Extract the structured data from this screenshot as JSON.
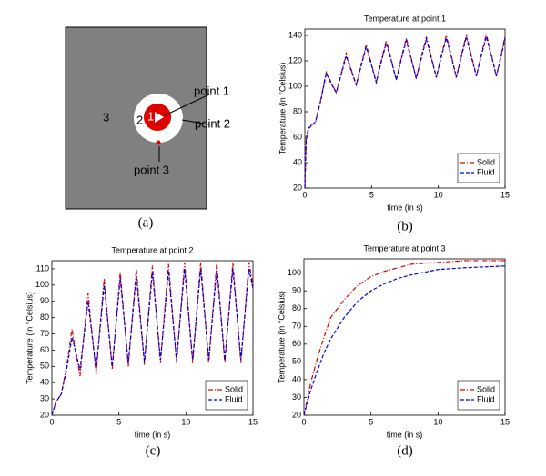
{
  "figure": {
    "panels": [
      "(a)",
      "(b)",
      "(c)",
      "(d)"
    ],
    "diagram": {
      "regions": [
        "3",
        "2",
        "1"
      ],
      "points": [
        "point 1",
        "point 2",
        "point 3"
      ]
    }
  },
  "chart_data": [
    {
      "type": "line",
      "title": "Temperature at point 1",
      "x_label": "time (in s)",
      "y_label": "Temperature (in °Celsius)",
      "x": [
        0,
        0.1,
        0.3,
        0.8,
        1.2,
        1.6,
        1.98,
        2.35,
        2.72,
        3.1,
        3.48,
        3.85,
        4.22,
        4.6,
        4.98,
        5.35,
        5.72,
        6.1,
        6.48,
        6.85,
        7.22,
        7.6,
        7.98,
        8.35,
        8.72,
        9.1,
        9.48,
        9.85,
        10.22,
        10.6,
        10.98,
        11.35,
        11.72,
        12.1,
        12.48,
        12.85,
        13.22,
        13.6,
        13.98,
        14.35,
        14.72,
        15
      ],
      "series": [
        {
          "name": "Solid",
          "color": "#e00000",
          "style": "dash-dot",
          "values": [
            20,
            60,
            68,
            72,
            90,
            111,
            103,
            95,
            110,
            126,
            113,
            101,
            117,
            133,
            118,
            103,
            120,
            136,
            121,
            105,
            122,
            138,
            122,
            106,
            123,
            139,
            123,
            107,
            124,
            140,
            124,
            107,
            124,
            141,
            124,
            108,
            125,
            141,
            125,
            108,
            125,
            140
          ]
        },
        {
          "name": "Fluid",
          "color": "#0000e0",
          "style": "dashed",
          "values": [
            20,
            58,
            67,
            72,
            89,
            110,
            102,
            95,
            109,
            124,
            112,
            101,
            116,
            131,
            117,
            103,
            119,
            134,
            120,
            105,
            121,
            136,
            121,
            106,
            122,
            137,
            122,
            107,
            123,
            138,
            123,
            107,
            123,
            139,
            123,
            108,
            124,
            139,
            124,
            108,
            124,
            138
          ]
        }
      ],
      "xlim": [
        0,
        15
      ],
      "xticks": [
        0,
        5,
        10,
        15
      ],
      "ylim": [
        20,
        145
      ],
      "yticks": [
        20,
        40,
        60,
        80,
        100,
        120,
        140
      ],
      "legend": "lower right"
    },
    {
      "type": "line",
      "title": "Temperature at point 2",
      "x_label": "time (in s)",
      "y_label": "Temperature (in °Celsius)",
      "x": [
        0,
        0.3,
        0.7,
        1.1,
        1.5,
        1.8,
        2.1,
        2.4,
        2.7,
        3.0,
        3.3,
        3.6,
        3.9,
        4.2,
        4.5,
        4.8,
        5.1,
        5.4,
        5.7,
        6.0,
        6.3,
        6.6,
        6.9,
        7.2,
        7.5,
        7.8,
        8.1,
        8.4,
        8.7,
        9.0,
        9.3,
        9.6,
        9.9,
        10.2,
        10.5,
        10.8,
        11.1,
        11.4,
        11.7,
        12.0,
        12.3,
        12.6,
        12.9,
        13.2,
        13.5,
        13.8,
        14.1,
        14.4,
        14.7,
        15
      ],
      "series": [
        {
          "name": "Solid",
          "color": "#e00000",
          "style": "dash-dot",
          "values": [
            20,
            28,
            33,
            50,
            73,
            58,
            44,
            70,
            95,
            70,
            45,
            75,
            104,
            76,
            48,
            78,
            108,
            79,
            50,
            80,
            110,
            81,
            51,
            82,
            112,
            82,
            52,
            83,
            113,
            83,
            52,
            83,
            114,
            83,
            52,
            83,
            114,
            83,
            52,
            83,
            114,
            83,
            52,
            83,
            114,
            83,
            52,
            83,
            114,
            100
          ]
        },
        {
          "name": "Fluid",
          "color": "#0000e0",
          "style": "dashed",
          "values": [
            20,
            28,
            33,
            48,
            68,
            58,
            48,
            69,
            90,
            69,
            48,
            74,
            100,
            75,
            50,
            77,
            104,
            78,
            52,
            79,
            106,
            79,
            53,
            80,
            108,
            81,
            54,
            81,
            109,
            81,
            54,
            82,
            110,
            82,
            54,
            82,
            110,
            82,
            54,
            82,
            110,
            82,
            54,
            82,
            110,
            82,
            54,
            82,
            110,
            98
          ]
        }
      ],
      "xlim": [
        0,
        15
      ],
      "xticks": [
        0,
        5,
        10,
        15
      ],
      "ylim": [
        20,
        115
      ],
      "yticks": [
        20,
        30,
        40,
        50,
        60,
        70,
        80,
        90,
        100,
        110
      ],
      "legend": "lower right"
    },
    {
      "type": "line",
      "title": "Temperature at point 3",
      "x_label": "time (in s)",
      "y_label": "Temperature (in °Celsius)",
      "x": [
        0,
        0.5,
        1,
        1.5,
        2,
        3,
        4,
        5,
        6,
        7,
        8,
        10,
        12,
        15
      ],
      "series": [
        {
          "name": "Solid",
          "color": "#e00000",
          "style": "dash-dot",
          "values": [
            20,
            38,
            52,
            64,
            75,
            85,
            93,
            98,
            101,
            103,
            105,
            106,
            107,
            107
          ]
        },
        {
          "name": "Fluid",
          "color": "#0000e0",
          "style": "dashed",
          "values": [
            20,
            34,
            45,
            55,
            63,
            75,
            84,
            90,
            94,
            97,
            99,
            102,
            103,
            104
          ]
        }
      ],
      "xlim": [
        0,
        15
      ],
      "xticks": [
        0,
        5,
        10,
        15
      ],
      "ylim": [
        20,
        108
      ],
      "yticks": [
        20,
        30,
        40,
        50,
        60,
        70,
        80,
        90,
        100
      ],
      "legend": "lower right"
    }
  ]
}
